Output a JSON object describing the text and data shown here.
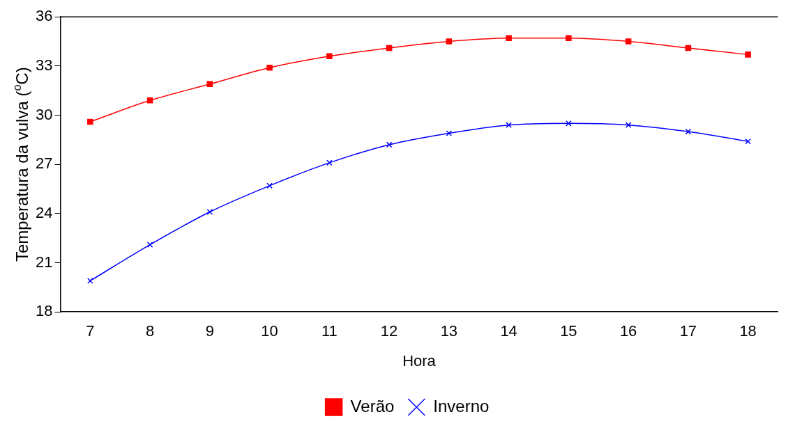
{
  "chart_data": {
    "type": "line",
    "xlabel": "Hora",
    "ylabel": "Temperatura da vulva ($^{o}$C)",
    "categories": [
      "7",
      "8",
      "9",
      "10",
      "11",
      "12",
      "13",
      "14",
      "15",
      "16",
      "17",
      "18"
    ],
    "series": [
      {
        "name": "Verão",
        "color": "#ff0000",
        "marker": "square",
        "values": [
          29.6,
          30.9,
          31.9,
          32.9,
          33.6,
          34.1,
          34.5,
          34.7,
          34.7,
          34.5,
          34.1,
          33.7
        ]
      },
      {
        "name": "Inverno",
        "color": "#0000ff",
        "marker": "cross",
        "values": [
          19.9,
          22.1,
          24.1,
          25.7,
          27.1,
          28.2,
          28.9,
          29.4,
          29.5,
          29.4,
          29.0,
          28.4
        ]
      }
    ],
    "ylim": [
      18,
      36
    ],
    "yticks": [
      18,
      21,
      24,
      27,
      30,
      33,
      36
    ],
    "grid": false,
    "legend": "bottom",
    "line_style": "solid"
  }
}
